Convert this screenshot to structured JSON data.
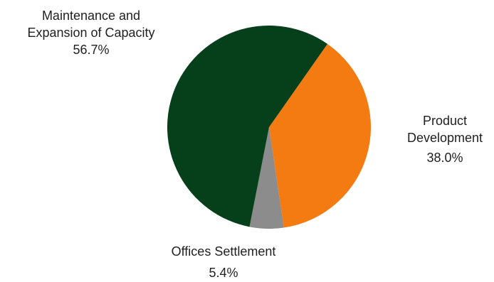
{
  "chart_data": {
    "type": "pie",
    "title": "",
    "slices": [
      {
        "name": "Maintenance and Expansion of Capacity",
        "label_lines": [
          "Maintenance and",
          "Expansion of Capacity"
        ],
        "percent_label": "56.7%",
        "value": 56.7,
        "color": "#05401a"
      },
      {
        "name": "Product Development",
        "label_lines": [
          "Product",
          "Development"
        ],
        "percent_label": "38.0%",
        "value": 38.0,
        "color": "#f47a12"
      },
      {
        "name": "Offices Settlement",
        "label_lines": [
          "Offices Settlement"
        ],
        "percent_label": "5.4%",
        "value": 5.4,
        "color": "#8c8c8c"
      }
    ],
    "legend": "none",
    "start_angle_deg": 35,
    "direction": "clockwise"
  }
}
